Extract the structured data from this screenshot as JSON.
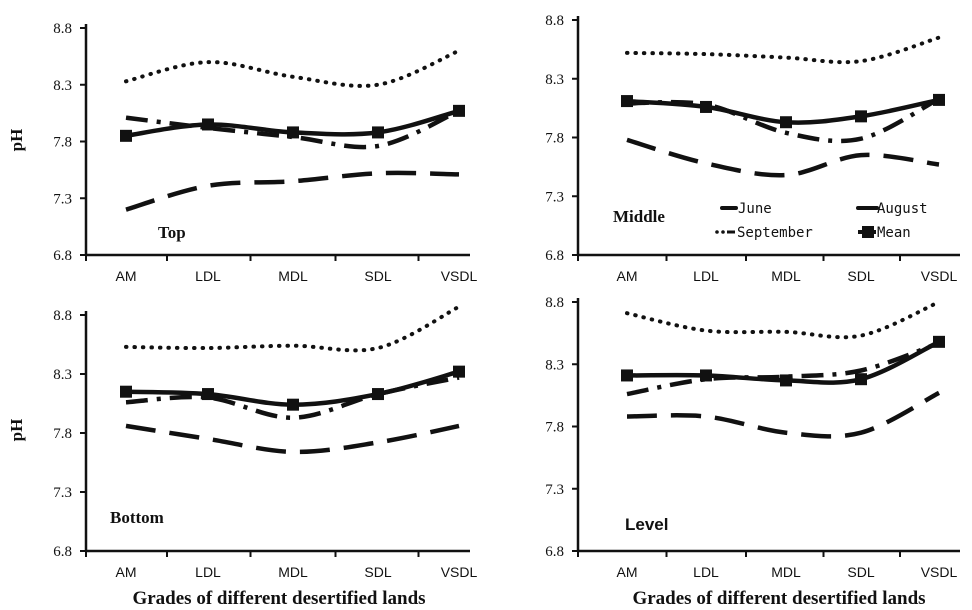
{
  "colors": {
    "ink": "#111111",
    "background": "#ffffff"
  },
  "x_axis_label": "Grades of different desertified lands",
  "y_axis_label": "pH",
  "legend": [
    {
      "name": "June",
      "style": "dash"
    },
    {
      "name": "August",
      "style": "dashdot"
    },
    {
      "name": "September",
      "style": "dot"
    },
    {
      "name": "Mean",
      "style": "solid-square"
    }
  ],
  "chart_data": [
    {
      "type": "line",
      "title": "Top",
      "categories": [
        "AM",
        "LDL",
        "MDL",
        "SDL",
        "VSDL"
      ],
      "ylim": [
        6.8,
        8.8
      ],
      "yticks": [
        6.8,
        7.3,
        7.8,
        8.3,
        8.8
      ],
      "xlabel": "",
      "ylabel": "pH",
      "series": [
        {
          "name": "June",
          "values": [
            7.2,
            7.41,
            7.45,
            7.52,
            7.51
          ]
        },
        {
          "name": "August",
          "values": [
            8.01,
            7.92,
            7.84,
            7.76,
            8.07
          ]
        },
        {
          "name": "September",
          "values": [
            8.33,
            8.5,
            8.37,
            8.3,
            8.6
          ]
        },
        {
          "name": "Mean",
          "values": [
            7.85,
            7.95,
            7.88,
            7.88,
            8.07
          ]
        }
      ]
    },
    {
      "type": "line",
      "title": "Middle",
      "categories": [
        "AM",
        "LDL",
        "MDL",
        "SDL",
        "VSDL"
      ],
      "ylim": [
        6.8,
        8.8
      ],
      "yticks": [
        6.8,
        7.3,
        7.8,
        8.3,
        8.8
      ],
      "xlabel": "",
      "ylabel": "",
      "series": [
        {
          "name": "June",
          "values": [
            7.78,
            7.58,
            7.48,
            7.65,
            7.57
          ]
        },
        {
          "name": "August",
          "values": [
            8.09,
            8.08,
            7.84,
            7.79,
            8.13
          ]
        },
        {
          "name": "September",
          "values": [
            8.52,
            8.51,
            8.48,
            8.45,
            8.65
          ]
        },
        {
          "name": "Mean",
          "values": [
            8.11,
            8.06,
            7.93,
            7.98,
            8.12
          ]
        }
      ]
    },
    {
      "type": "line",
      "title": "Bottom",
      "categories": [
        "AM",
        "LDL",
        "MDL",
        "SDL",
        "VSDL"
      ],
      "ylim": [
        6.8,
        8.8
      ],
      "yticks": [
        6.8,
        7.3,
        7.8,
        8.3,
        8.8
      ],
      "xlabel": "Grades of different desertified lands",
      "ylabel": "pH",
      "series": [
        {
          "name": "June",
          "values": [
            7.86,
            7.75,
            7.64,
            7.72,
            7.86
          ]
        },
        {
          "name": "August",
          "values": [
            8.06,
            8.1,
            7.93,
            8.13,
            8.27
          ]
        },
        {
          "name": "September",
          "values": [
            8.53,
            8.52,
            8.54,
            8.52,
            8.87
          ]
        },
        {
          "name": "Mean",
          "values": [
            8.15,
            8.13,
            8.04,
            8.13,
            8.32
          ]
        }
      ]
    },
    {
      "type": "line",
      "title": "Level",
      "categories": [
        "AM",
        "LDL",
        "MDL",
        "SDL",
        "VSDL"
      ],
      "ylim": [
        6.8,
        8.8
      ],
      "yticks": [
        6.8,
        7.3,
        7.8,
        8.3,
        8.8
      ],
      "xlabel": "Grades of different desertified lands",
      "ylabel": "",
      "series": [
        {
          "name": "June",
          "values": [
            7.88,
            7.88,
            7.75,
            7.75,
            8.07
          ]
        },
        {
          "name": "August",
          "values": [
            8.06,
            8.18,
            8.2,
            8.25,
            8.47
          ]
        },
        {
          "name": "September",
          "values": [
            8.71,
            8.57,
            8.56,
            8.53,
            8.8
          ]
        },
        {
          "name": "Mean",
          "values": [
            8.21,
            8.21,
            8.17,
            8.18,
            8.48
          ]
        }
      ]
    }
  ]
}
